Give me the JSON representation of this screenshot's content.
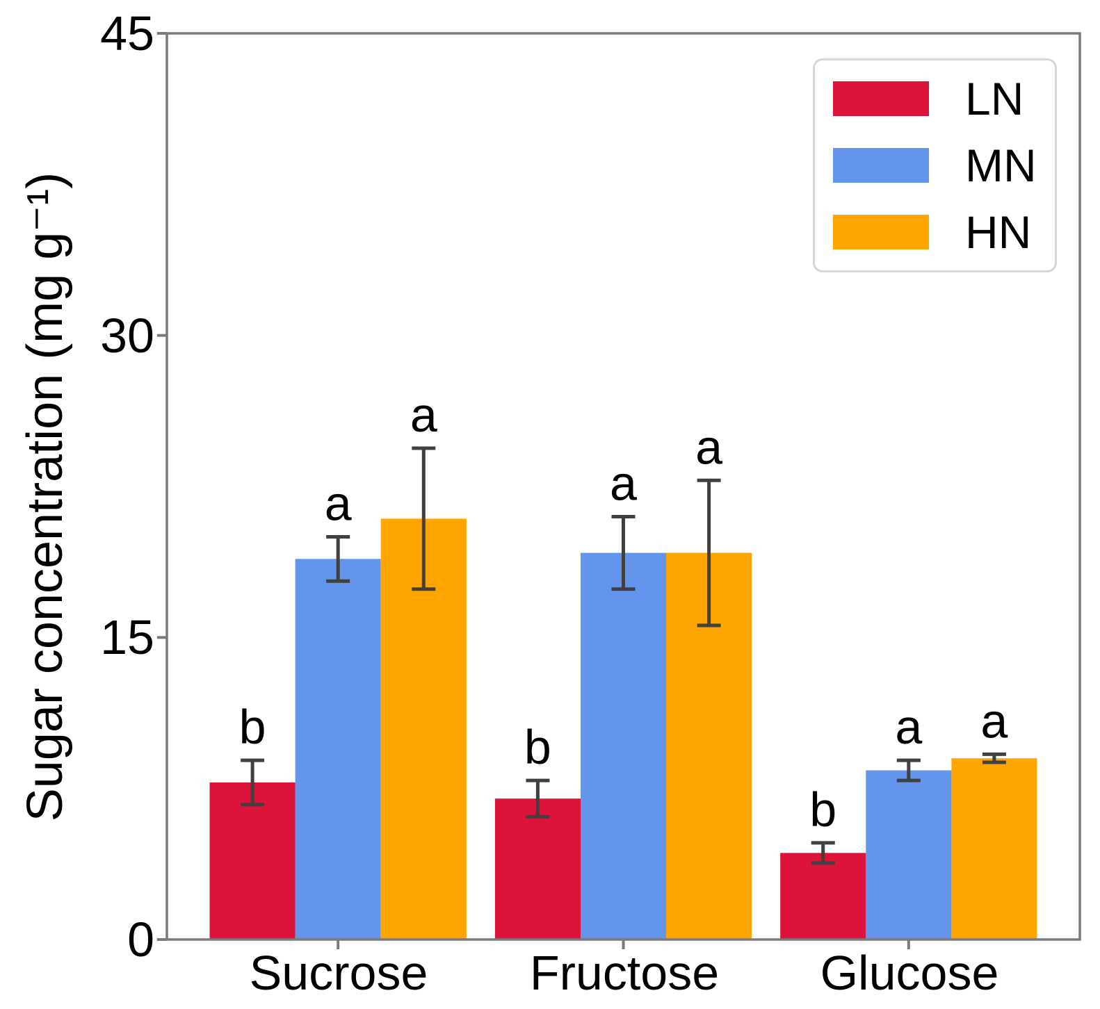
{
  "chart_data": {
    "type": "bar",
    "title": "",
    "xlabel": "",
    "ylabel": "Sugar concentration (mg g⁻¹)",
    "categories": [
      "Sucrose",
      "Fructose",
      "Glucose"
    ],
    "series": [
      {
        "name": "LN",
        "color": "#DC143C",
        "values": [
          7.8,
          7.0,
          4.3
        ],
        "errors": [
          1.1,
          0.9,
          0.5
        ]
      },
      {
        "name": "MN",
        "color": "#6495ED",
        "values": [
          18.9,
          19.2,
          8.4
        ],
        "errors": [
          1.1,
          1.8,
          0.5
        ]
      },
      {
        "name": "HN",
        "color": "#FFA500",
        "values": [
          20.9,
          19.2,
          9.0
        ],
        "errors": [
          3.5,
          3.6,
          0.2
        ]
      }
    ],
    "sig_letters": [
      [
        "b",
        "a",
        "a"
      ],
      [
        "b",
        "a",
        "a"
      ],
      [
        "b",
        "a",
        "a"
      ]
    ],
    "yticks": [
      0,
      15,
      30,
      45
    ],
    "ylim": [
      0,
      45
    ],
    "grid": false,
    "legend_position": "upper right",
    "error_bar_color": "#404040",
    "axis_color": "#7a7a7a",
    "text_color": "#000000"
  }
}
